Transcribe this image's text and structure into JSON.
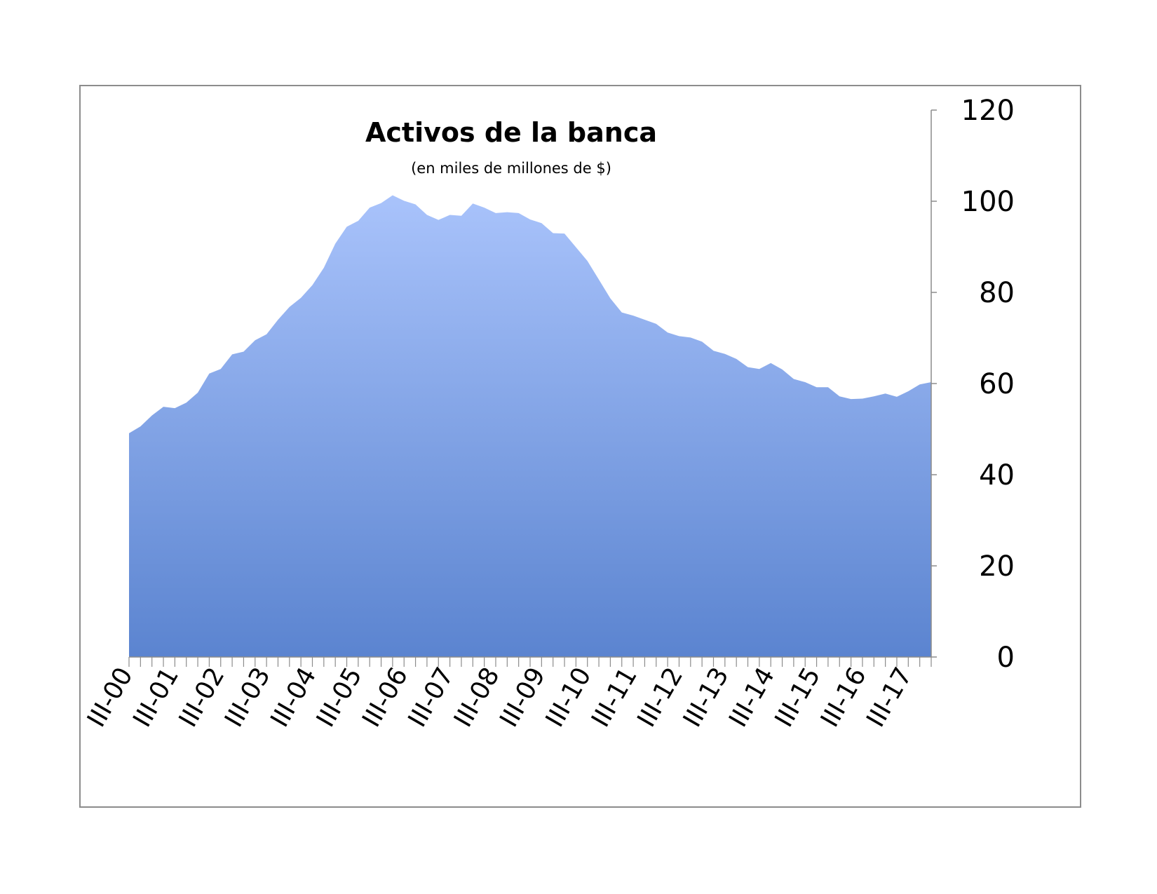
{
  "chart_data": {
    "type": "area",
    "title": "Activos de la banca",
    "subtitle": "(en miles de millones de $)",
    "xlabel": "",
    "ylabel": "",
    "ylim": [
      0,
      120
    ],
    "yticks": [
      0,
      20,
      40,
      60,
      80,
      100,
      120
    ],
    "y_axis_position": "right",
    "grid": false,
    "legend": "none",
    "x_tick_labels": [
      "III-00",
      "III-01",
      "III-02",
      "III-03",
      "III-04",
      "III-05",
      "III-06",
      "III-07",
      "III-08",
      "III-09",
      "III-10",
      "III-11",
      "III-12",
      "III-13",
      "III-14",
      "III-15",
      "III-16",
      "III-17"
    ],
    "x_tick_label_interval_quarters": 4,
    "fill_color_top": "#a9c3fb",
    "fill_color_bottom": "#5b84d0",
    "series": [
      {
        "values": [
          49.1,
          50.6,
          53.0,
          54.9,
          54.6,
          55.8,
          58.0,
          62.2,
          63.2,
          66.4,
          67.0,
          69.5,
          70.8,
          74.0,
          76.8,
          78.8,
          81.6,
          85.4,
          90.7,
          94.4,
          95.7,
          98.6,
          99.6,
          101.3,
          100.1,
          99.3,
          97.0,
          95.9,
          97.0,
          96.8,
          99.5,
          98.6,
          97.4,
          97.6,
          97.4,
          96.0,
          95.2,
          93.0,
          92.9,
          89.9,
          86.9,
          82.8,
          78.7,
          75.6,
          74.9,
          74.0,
          73.1,
          71.2,
          70.4,
          70.1,
          69.2,
          67.2,
          66.5,
          65.4,
          63.6,
          63.2,
          64.5,
          63.1,
          61.0,
          60.3,
          59.2,
          59.2,
          57.2,
          56.6,
          56.7,
          57.2,
          57.8,
          57.1,
          58.3,
          59.8,
          60.3
        ]
      }
    ]
  }
}
